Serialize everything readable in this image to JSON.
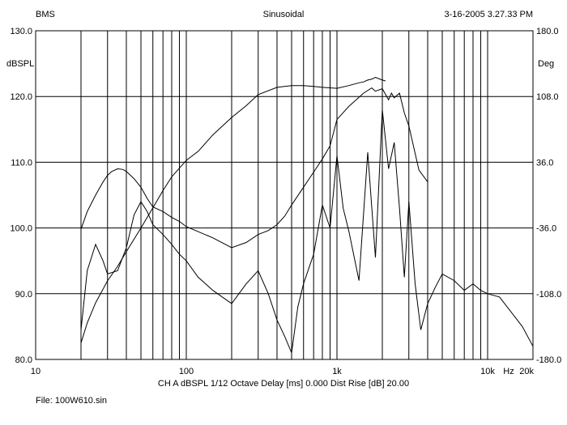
{
  "header": {
    "app_name": "BMS",
    "mode": "Sinusoidal",
    "timestamp": "3-16-2005 3.27.33 PM"
  },
  "footer": {
    "settings": "CH A   dBSPL   1/12 Octave   Delay [ms] 0.000   Dist Rise [dB] 20.00",
    "file": "File: 100W610.sin"
  },
  "chart_data": {
    "type": "line",
    "title": "Sinusoidal",
    "x_scale": "log",
    "xlim": [
      10,
      20000
    ],
    "ylim": [
      80,
      130
    ],
    "y2lim": [
      -180,
      180
    ],
    "ylabel": "dBSPL",
    "y2label": "Deg",
    "x_ticks": [
      {
        "value": 10,
        "label": "10"
      },
      {
        "value": 100,
        "label": "100"
      },
      {
        "value": 1000,
        "label": "1k"
      },
      {
        "value": 10000,
        "label": "10k"
      },
      {
        "value": 20000,
        "label": "20k"
      }
    ],
    "x_unit_label": "Hz",
    "y_ticks": [
      "130.0",
      "120.0",
      "110.0",
      "100.0",
      "90.0",
      "80.0"
    ],
    "y2_ticks": [
      "180.0",
      "108.0",
      "36.0",
      "-36.0",
      "-108.0",
      "-180.0"
    ],
    "grid": true,
    "series": [
      {
        "role": "spl-response",
        "x": [
          20,
          22,
          25,
          28,
          30,
          32,
          35,
          38,
          40,
          45,
          50,
          55,
          60,
          70,
          80,
          90,
          100,
          150,
          200,
          250,
          300,
          350,
          400,
          450,
          500,
          600,
          700,
          800,
          900,
          1000,
          1200,
          1500,
          1700,
          1800,
          2000,
          2200,
          2300,
          2400,
          2600,
          2800,
          3000,
          3500,
          4000
        ],
        "y": [
          99.8,
          102.5,
          105,
          107,
          108,
          108.6,
          109,
          108.9,
          108.6,
          107.5,
          106.2,
          104.5,
          103.2,
          102.5,
          101.6,
          101,
          100.2,
          98.5,
          97,
          97.8,
          99,
          99.6,
          100.5,
          101.8,
          103.5,
          106.2,
          108.5,
          110.5,
          112.5,
          116.5,
          118.5,
          120.5,
          121.3,
          120.8,
          121.2,
          119.5,
          120.5,
          119.8,
          120.5,
          117.5,
          115.5,
          108.8,
          107
        ]
      },
      {
        "role": "phase",
        "x": [
          20,
          22,
          25,
          30,
          35,
          40,
          50,
          60,
          70,
          80,
          100,
          120,
          150,
          200,
          250,
          300,
          400,
          500,
          600,
          700,
          800,
          1000,
          1200,
          1400,
          1500,
          1600,
          1700,
          1800,
          2000,
          2100
        ],
        "y": [
          -162,
          -140,
          -118,
          -94,
          -78,
          -62,
          -36,
          -14,
          5,
          20,
          38,
          48,
          66,
          85,
          98,
          110,
          118,
          120,
          120,
          119,
          118,
          117,
          120,
          123,
          124,
          126,
          127,
          129,
          126,
          125
        ]
      },
      {
        "role": "distortion",
        "x": [
          20,
          22,
          25,
          28,
          30,
          35,
          40,
          45,
          50,
          55,
          60,
          70,
          80,
          90,
          100,
          120,
          150,
          200,
          250,
          300,
          350,
          400,
          450,
          500,
          550,
          600,
          700,
          800,
          900,
          1000,
          1100,
          1200,
          1400,
          1600,
          1800,
          2000,
          2200,
          2400,
          2600,
          2800,
          3000,
          3300,
          3600,
          4000,
          4500,
          5000,
          6000,
          7000,
          8000,
          9000,
          10000,
          12000,
          14000,
          17000,
          20000
        ],
        "y": [
          84.5,
          93.5,
          97.5,
          95,
          93,
          93.5,
          97,
          102,
          104,
          102.5,
          100.5,
          99,
          97.5,
          96,
          95,
          92.5,
          90.5,
          88.5,
          91.5,
          93.5,
          90,
          86,
          83.5,
          81,
          88,
          91.5,
          96,
          103.5,
          100,
          111,
          103,
          99.5,
          92,
          111.5,
          95.5,
          118,
          109,
          113,
          103,
          92.5,
          104,
          91.5,
          84.5,
          88.5,
          91,
          93,
          92,
          90.5,
          91.5,
          90.5,
          90,
          89.5,
          87.5,
          85,
          82
        ]
      }
    ]
  }
}
